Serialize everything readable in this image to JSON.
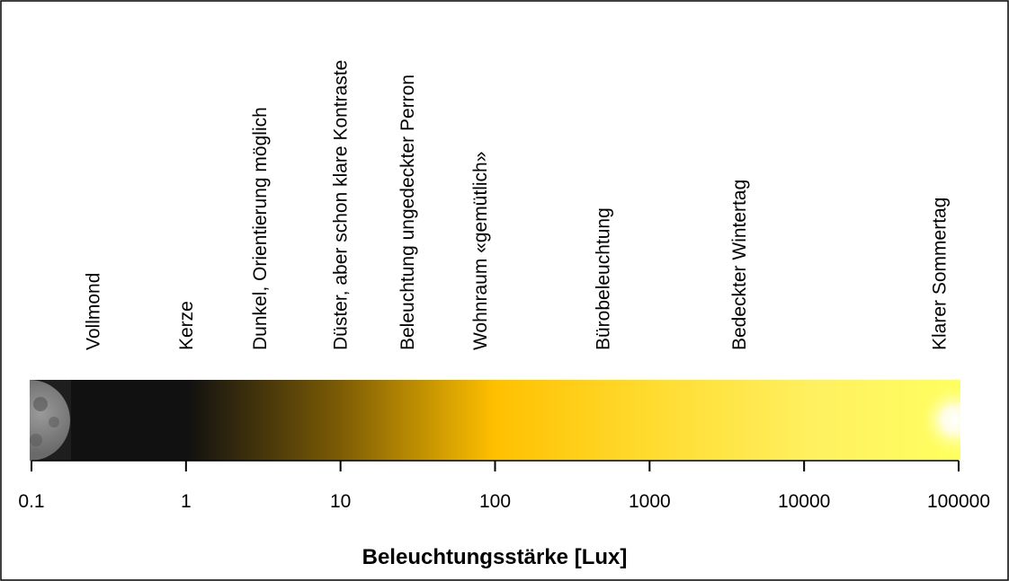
{
  "chart_data": {
    "type": "scale",
    "xlabel": "Beleuchtungsstärke [Lux]",
    "log_x": true,
    "xlim": [
      0.1,
      100000
    ],
    "xticks": [
      0.1,
      1,
      10,
      100,
      1000,
      10000,
      100000
    ],
    "annotations": [
      {
        "label": "Vollmond",
        "value": 0.25
      },
      {
        "label": "Kerze",
        "value": 1
      },
      {
        "label": "Dunkel, Orientierung möglich",
        "value": 3
      },
      {
        "label": "Düster, aber schon klare Kontraste",
        "value": 10
      },
      {
        "label": "Beleuchtung ungedeckter Perron",
        "value": 27
      },
      {
        "label": "Wohnraum «gemütlich»",
        "value": 80
      },
      {
        "label": "Bürobeleuchtung",
        "value": 500
      },
      {
        "label": "Bedeckter Wintertag",
        "value": 3800
      },
      {
        "label": "Klarer Sommertag",
        "value": 75000
      }
    ]
  }
}
